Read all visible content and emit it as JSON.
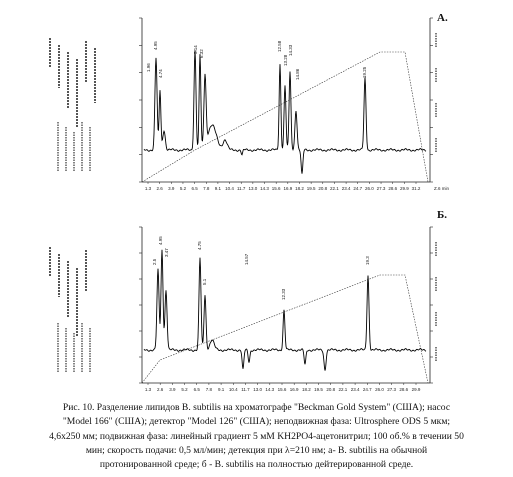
{
  "figure": {
    "panels": [
      {
        "id": "A",
        "label": "А.",
        "x_ticks": [
          "1.3",
          "2.6",
          "3.9",
          "5.2",
          "6.5",
          "7.8",
          "9.1",
          "10.4",
          "11.7",
          "13.0",
          "14.3",
          "15.6",
          "16.9",
          "18.2",
          "19.5",
          "20.8",
          "22.1",
          "23.4",
          "24.7",
          "26.0",
          "27.3",
          "28.6",
          "29.9",
          "31.2"
        ],
        "x_unit": "Z.6 min",
        "peak_labels": [
          "4.95",
          "4.74",
          "1.96",
          "5.14",
          "6.32",
          "12.58",
          "13.28",
          "14.33",
          "14.86",
          "19.25"
        ]
      },
      {
        "id": "B",
        "label": "Б.",
        "x_ticks": [
          "1.3",
          "2.6",
          "3.9",
          "5.2",
          "6.5",
          "7.8",
          "9.1",
          "10.4",
          "11.7",
          "13.0",
          "14.3",
          "15.6",
          "16.9",
          "18.2",
          "19.5",
          "20.8",
          "22.1",
          "23.4",
          "24.7",
          "26.0",
          "27.3",
          "28.6",
          "29.9"
        ],
        "x_unit": "",
        "peak_labels": [
          "2.5",
          "4.95",
          "3.47",
          "4.75",
          "5.1",
          "12.33",
          "14.57",
          "19.3"
        ]
      }
    ]
  },
  "caption": {
    "line1": "Рис. 10. Разделение липидов B. subtilis на хроматографе \"Beckman Gold System\" (США); насос",
    "line2": "\"Model 166\" (США); детектор \"Model 126\" (США); неподвижная фаза: Ultrosphere ODS 5 мкм;",
    "line3": "4,6x250 мм; подвижная фаза: линейный градиент 5 мМ KH2PO4-ацетонитрил; 100 об.% в течении 50",
    "line4": "мин; скорость подачи: 0,5 мл/мин; детекция при λ=210 нм; а- B. subtilis на обычной",
    "line5": "протонированной среде; б - B. subtilis на полностью дейтерированной среде."
  }
}
